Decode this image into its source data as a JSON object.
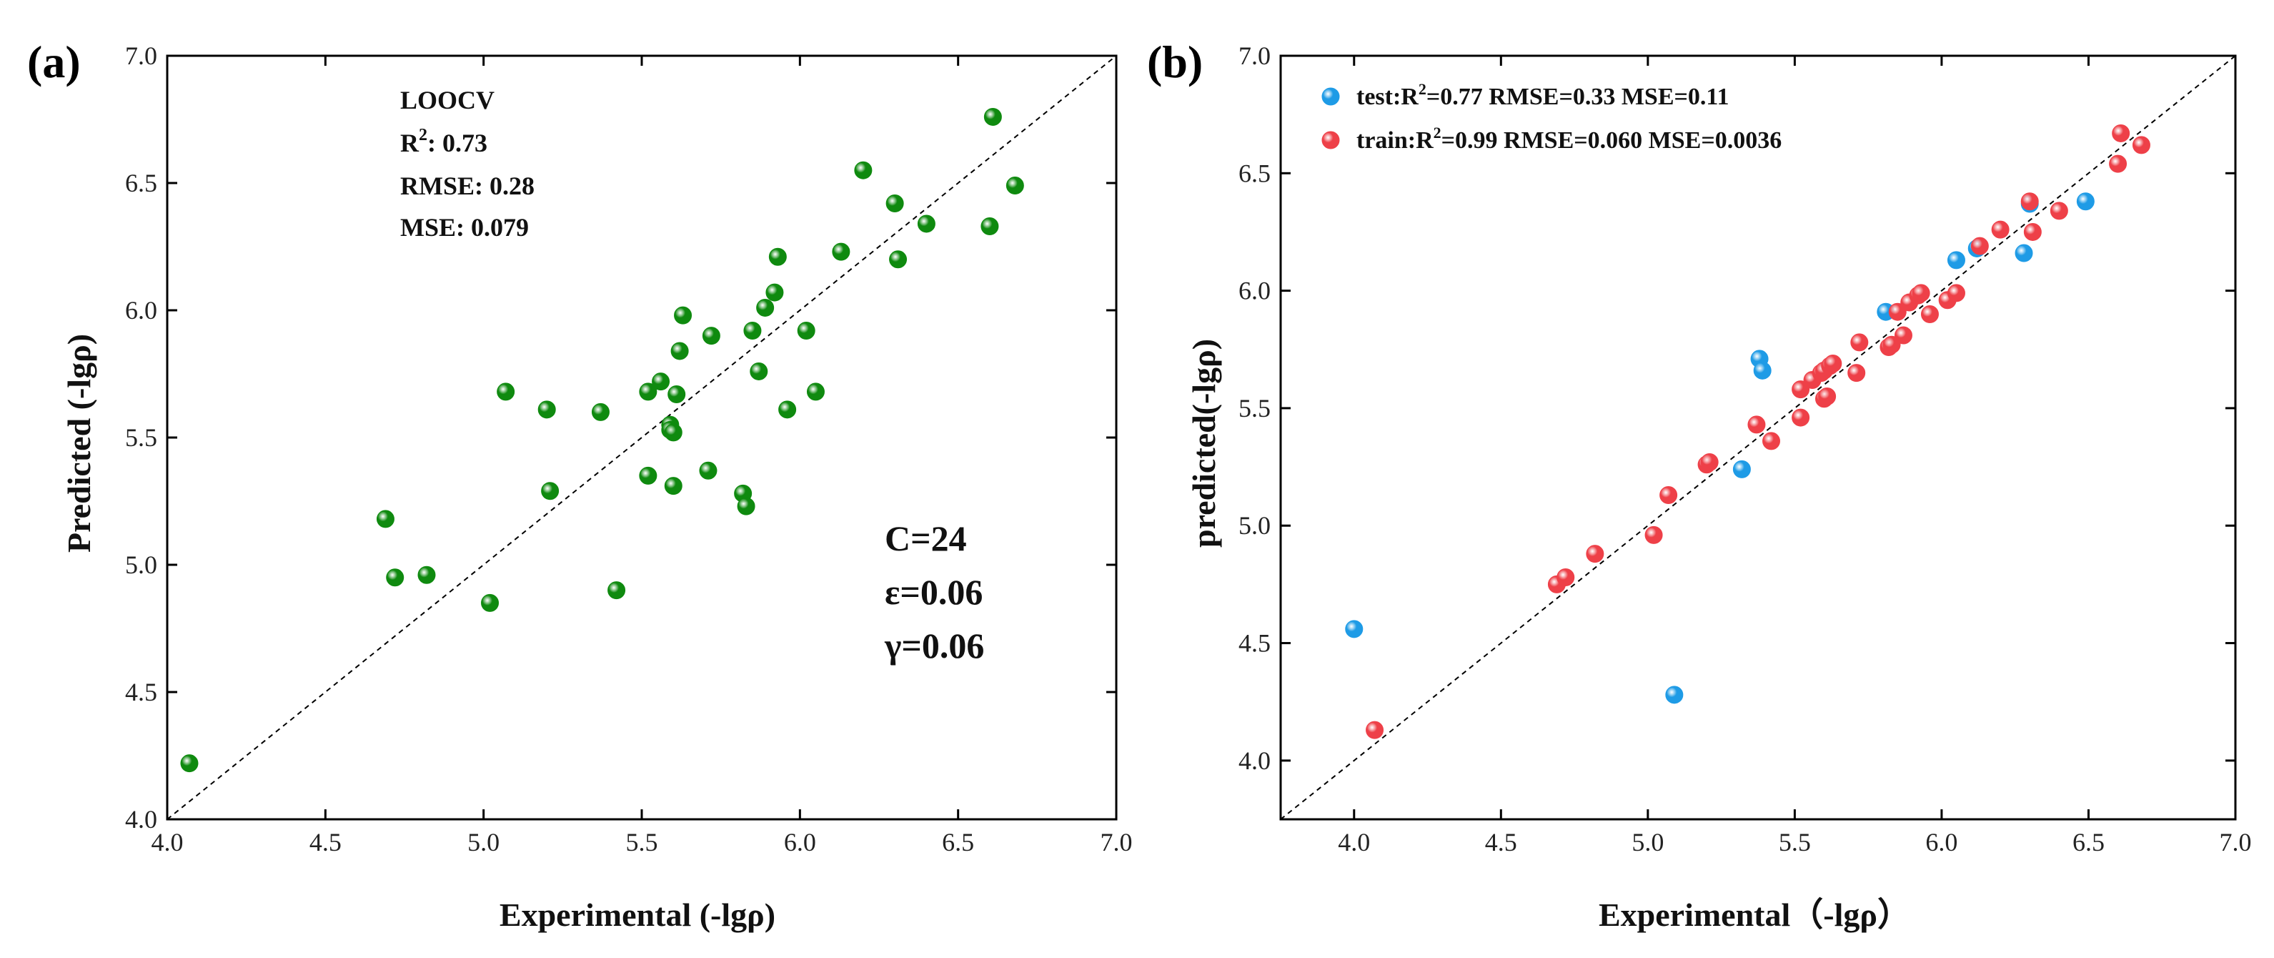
{
  "colors": {
    "loocv_points": "#0f8a0f",
    "test_points": "#1e9be6",
    "train_points": "#ee4048"
  },
  "chart_data": [
    {
      "type": "scatter",
      "panel_label": "(a)",
      "xlabel": "Experimental (-lgρ)",
      "ylabel": "Predicted (-lgρ)",
      "xlim": [
        4.0,
        7.0
      ],
      "ylim": [
        4.0,
        7.0
      ],
      "xticks": [
        "4.0",
        "4.5",
        "5.0",
        "5.5",
        "6.0",
        "6.5",
        "7.0"
      ],
      "yticks": [
        "4.0",
        "4.5",
        "5.0",
        "5.5",
        "6.0",
        "6.5",
        "7.0"
      ],
      "identity_line": true,
      "grid": false,
      "annotations": {
        "method": "LOOCV",
        "r2_label": "R",
        "r2_sup": "2",
        "r2_value": ": 0.73",
        "rmse": "RMSE: 0.28",
        "mse": "MSE: 0.079",
        "C": "C=24",
        "epsilon": "ε=0.06",
        "gamma": "γ=0.06"
      },
      "series": [
        {
          "color": "#0f8a0f",
          "points": [
            [
              4.07,
              4.22
            ],
            [
              4.69,
              5.18
            ],
            [
              4.72,
              4.95
            ],
            [
              4.82,
              4.96
            ],
            [
              5.02,
              4.85
            ],
            [
              5.07,
              5.68
            ],
            [
              5.2,
              5.61
            ],
            [
              5.21,
              5.29
            ],
            [
              5.37,
              5.6
            ],
            [
              5.42,
              4.9
            ],
            [
              5.52,
              5.68
            ],
            [
              5.52,
              5.35
            ],
            [
              5.56,
              5.72
            ],
            [
              5.59,
              5.55
            ],
            [
              5.59,
              5.53
            ],
            [
              5.6,
              5.52
            ],
            [
              5.6,
              5.31
            ],
            [
              5.61,
              5.67
            ],
            [
              5.62,
              5.84
            ],
            [
              5.63,
              5.98
            ],
            [
              5.71,
              5.37
            ],
            [
              5.72,
              5.9
            ],
            [
              5.82,
              5.28
            ],
            [
              5.83,
              5.23
            ],
            [
              5.85,
              5.92
            ],
            [
              5.87,
              5.76
            ],
            [
              5.89,
              6.01
            ],
            [
              5.92,
              6.07
            ],
            [
              5.93,
              6.21
            ],
            [
              5.96,
              5.61
            ],
            [
              6.02,
              5.92
            ],
            [
              6.05,
              5.68
            ],
            [
              6.13,
              6.23
            ],
            [
              6.2,
              6.55
            ],
            [
              6.3,
              6.42
            ],
            [
              6.31,
              6.2
            ],
            [
              6.4,
              6.34
            ],
            [
              6.6,
              6.33
            ],
            [
              6.61,
              6.76
            ],
            [
              6.68,
              6.49
            ]
          ]
        }
      ]
    },
    {
      "type": "scatter",
      "panel_label": "(b)",
      "xlabel": "Experimental（-lgρ）",
      "ylabel": "predicted(-lgρ)",
      "xlim": [
        3.75,
        7.0
      ],
      "ylim": [
        3.75,
        7.0
      ],
      "xticks": [
        "4.0",
        "4.5",
        "5.0",
        "5.5",
        "6.0",
        "6.5",
        "7.0"
      ],
      "yticks": [
        "4.0",
        "4.5",
        "5.0",
        "5.5",
        "6.0",
        "6.5",
        "7.0"
      ],
      "identity_line": true,
      "grid": false,
      "legend_position": "top-left",
      "series": [
        {
          "name": "test",
          "legend": {
            "prefix": "test:R",
            "sup": "2",
            "rest": "=0.77 RMSE=0.33 MSE=0.11"
          },
          "color": "#1e9be6",
          "points": [
            [
              4.0,
              4.56
            ],
            [
              5.09,
              4.28
            ],
            [
              5.32,
              5.24
            ],
            [
              5.38,
              5.71
            ],
            [
              5.39,
              5.66
            ],
            [
              5.81,
              5.91
            ],
            [
              6.05,
              6.13
            ],
            [
              6.12,
              6.18
            ],
            [
              6.28,
              6.16
            ],
            [
              6.3,
              6.37
            ],
            [
              6.49,
              6.38
            ]
          ]
        },
        {
          "name": "train",
          "legend": {
            "prefix": "train:R",
            "sup": "2",
            "rest": "=0.99 RMSE=0.060 MSE=0.0036"
          },
          "color": "#ee4048",
          "points": [
            [
              4.07,
              4.13
            ],
            [
              4.69,
              4.75
            ],
            [
              4.72,
              4.78
            ],
            [
              4.82,
              4.88
            ],
            [
              5.02,
              4.96
            ],
            [
              5.07,
              5.13
            ],
            [
              5.2,
              5.26
            ],
            [
              5.21,
              5.27
            ],
            [
              5.37,
              5.43
            ],
            [
              5.42,
              5.36
            ],
            [
              5.52,
              5.58
            ],
            [
              5.52,
              5.46
            ],
            [
              5.56,
              5.62
            ],
            [
              5.59,
              5.65
            ],
            [
              5.6,
              5.66
            ],
            [
              5.6,
              5.54
            ],
            [
              5.61,
              5.55
            ],
            [
              5.62,
              5.68
            ],
            [
              5.63,
              5.69
            ],
            [
              5.71,
              5.65
            ],
            [
              5.72,
              5.78
            ],
            [
              5.82,
              5.76
            ],
            [
              5.83,
              5.77
            ],
            [
              5.85,
              5.91
            ],
            [
              5.87,
              5.81
            ],
            [
              5.89,
              5.95
            ],
            [
              5.92,
              5.98
            ],
            [
              5.93,
              5.99
            ],
            [
              5.96,
              5.9
            ],
            [
              6.02,
              5.96
            ],
            [
              6.05,
              5.99
            ],
            [
              6.13,
              6.19
            ],
            [
              6.2,
              6.26
            ],
            [
              6.3,
              6.38
            ],
            [
              6.31,
              6.25
            ],
            [
              6.4,
              6.34
            ],
            [
              6.6,
              6.54
            ],
            [
              6.61,
              6.67
            ],
            [
              6.68,
              6.62
            ]
          ]
        }
      ]
    }
  ]
}
